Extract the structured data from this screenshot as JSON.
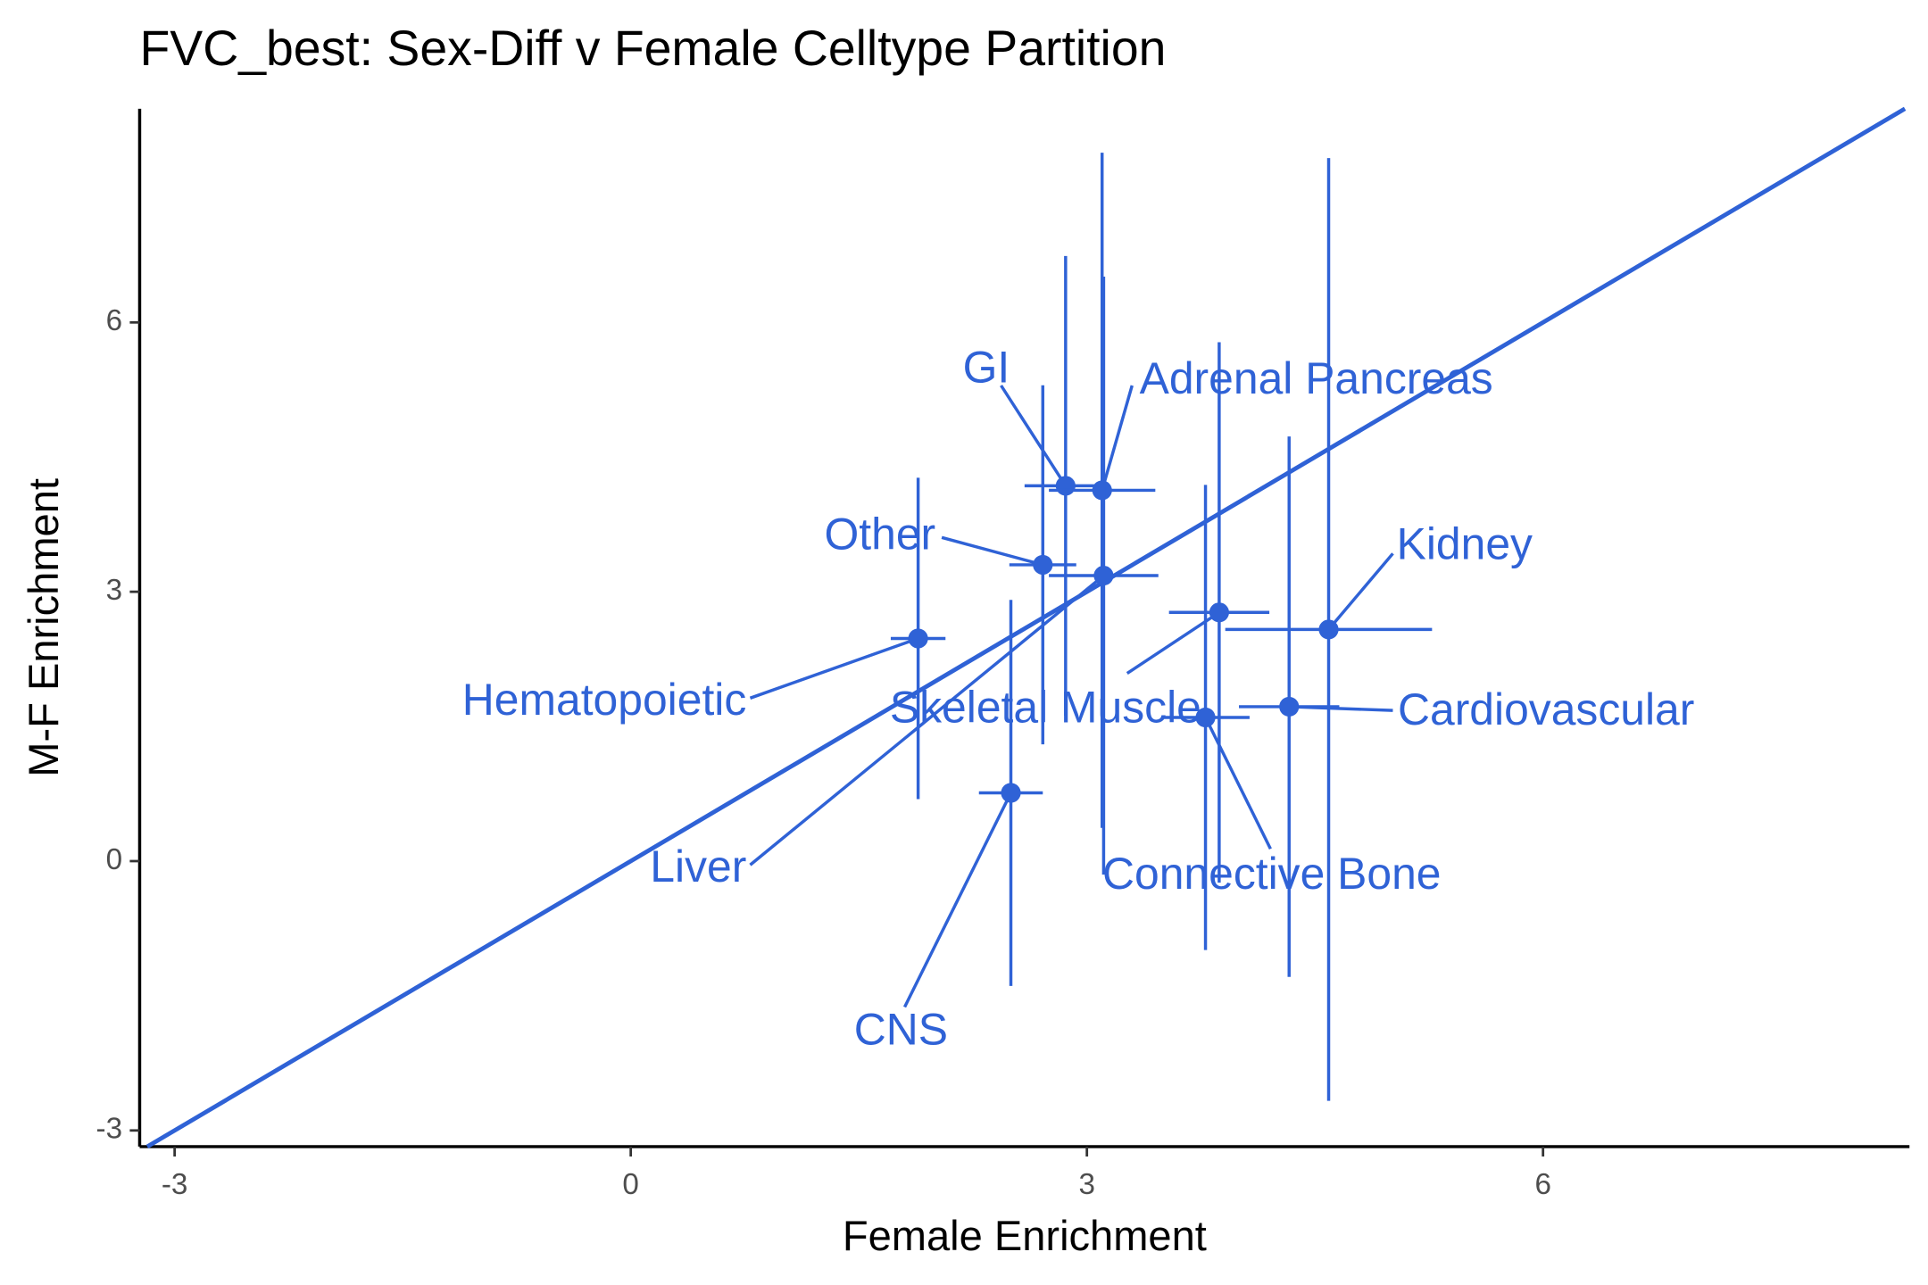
{
  "chart_data": {
    "type": "scatter",
    "title": "FVC_best: Sex-Diff v Female Celltype Partition",
    "x_label": "Female Enrichment",
    "y_label": "M-F Enrichment",
    "labels": [
      "GI",
      "Adrenal Pancreas",
      "Other",
      "Liver",
      "Hematopoietic",
      "Skeletal Muscle",
      "Kidney",
      "Cardiovascular",
      "Connective Bone",
      "CNS"
    ],
    "x": [
      2.86,
      3.1,
      2.71,
      3.11,
      1.89,
      3.87,
      4.59,
      4.33,
      3.78,
      2.5
    ],
    "y": [
      4.18,
      4.13,
      3.3,
      3.18,
      2.48,
      2.77,
      2.58,
      1.72,
      1.6,
      0.76
    ],
    "xerr": [
      0.27,
      0.35,
      0.22,
      0.36,
      0.18,
      0.33,
      0.68,
      0.33,
      0.29,
      0.21
    ],
    "yerr": [
      2.56,
      3.76,
      2.0,
      3.33,
      1.79,
      3.01,
      5.25,
      3.01,
      2.59,
      2.15
    ],
    "color": "#2f62d6",
    "identity_line": true,
    "xlim": [
      -3.23,
      8.41
    ],
    "ylim": [
      -3.18,
      8.38
    ],
    "xticks": [
      -3,
      0,
      3,
      6
    ],
    "yticks": [
      -3,
      0,
      3,
      6
    ]
  }
}
